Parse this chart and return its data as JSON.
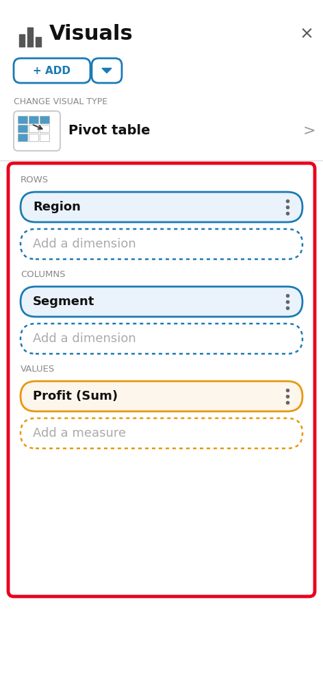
{
  "bg_color": "#ffffff",
  "title": "Visuals",
  "title_fontsize": 20,
  "close_x": "×",
  "add_btn_text": "+ ADD",
  "change_visual_type_label": "CHANGE VISUAL TYPE",
  "pivot_table_text": "Pivot table",
  "red_border_color": "#e8001c",
  "blue_border_color": "#1a7ab5",
  "orange_border_color": "#e8970a",
  "section_label_color": "#888888",
  "rows_label": "ROWS",
  "columns_label": "COLUMNS",
  "values_label": "VALUES",
  "region_text": "Region",
  "segment_text": "Segment",
  "profit_text": "Profit (Sum)",
  "add_dimension_text": "Add a dimension",
  "add_measure_text": "Add a measure",
  "region_bg": "#eaf3fb",
  "segment_bg": "#eaf3fb",
  "profit_bg": "#fdf6ec",
  "dot_color": "#666666",
  "gray_text": "#aaaaaa",
  "separator_color": "#dddddd"
}
